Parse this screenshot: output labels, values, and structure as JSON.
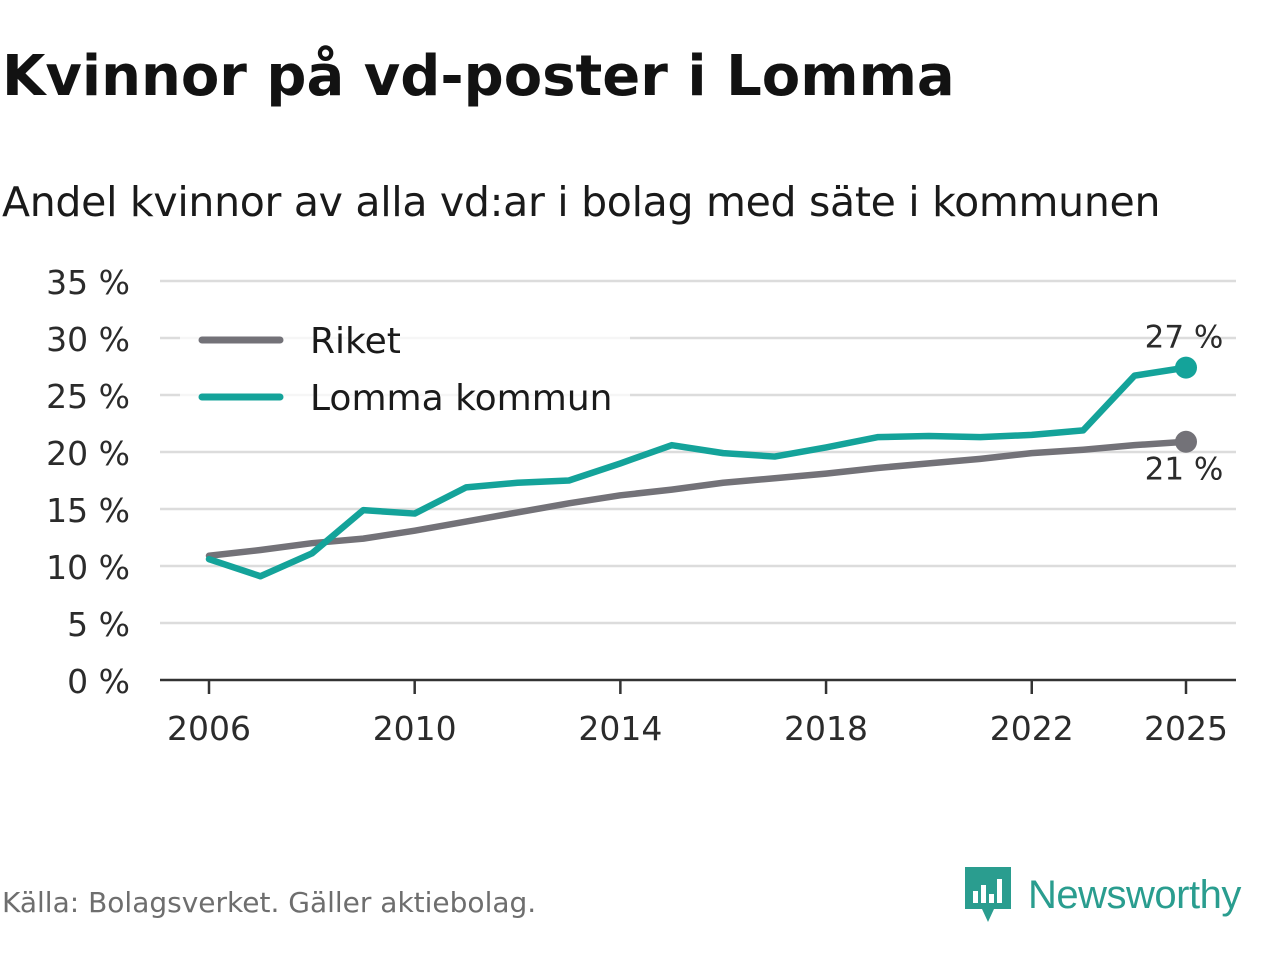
{
  "header": {
    "title": "Kvinnor på vd-poster i Lomma",
    "subtitle": "Andel kvinnor av alla vd:ar i bolag med säte i kommunen"
  },
  "chart_data": {
    "type": "line",
    "title": "Kvinnor på vd-poster i Lomma",
    "subtitle": "Andel kvinnor av alla vd:ar i bolag med säte i kommunen",
    "xlabel": "",
    "ylabel": "",
    "x": [
      2006,
      2007,
      2008,
      2009,
      2010,
      2011,
      2012,
      2013,
      2014,
      2015,
      2016,
      2017,
      2018,
      2019,
      2020,
      2021,
      2022,
      2023,
      2024,
      2025
    ],
    "ylim": [
      0,
      35
    ],
    "y_ticks": [
      0,
      5,
      10,
      15,
      20,
      25,
      30,
      35
    ],
    "y_tick_labels": [
      "0 %",
      "5 %",
      "10 %",
      "15 %",
      "20 %",
      "25 %",
      "30 %",
      "35 %"
    ],
    "x_ticks": [
      2006,
      2010,
      2014,
      2018,
      2022,
      2025
    ],
    "x_tick_labels": [
      "2006",
      "2010",
      "2014",
      "2018",
      "2022",
      "2025"
    ],
    "grid": true,
    "legend_position": "top-left",
    "series": [
      {
        "name": "Riket",
        "color": "#737278",
        "values": [
          10.9,
          11.4,
          12.0,
          12.4,
          13.1,
          13.9,
          14.7,
          15.5,
          16.2,
          16.7,
          17.3,
          17.7,
          18.1,
          18.6,
          19.0,
          19.4,
          19.9,
          20.2,
          20.6,
          20.9
        ],
        "end_label": "21 %"
      },
      {
        "name": "Lomma kommun",
        "color": "#14a39a",
        "values": [
          10.6,
          9.1,
          11.1,
          14.9,
          14.6,
          16.9,
          17.3,
          17.5,
          19.0,
          20.6,
          19.9,
          19.6,
          20.4,
          21.3,
          21.4,
          21.3,
          21.5,
          21.9,
          26.7,
          27.4
        ],
        "end_label": "27 %"
      }
    ]
  },
  "footer": {
    "source": "Källa: Bolagsverket. Gäller aktiebolag.",
    "brand": "Newsworthy",
    "brand_color": "#2a9d8f",
    "logo_icon": "newsworthy-bar-chart-icon"
  }
}
